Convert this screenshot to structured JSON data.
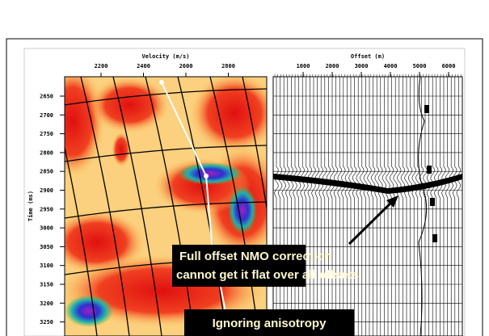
{
  "figure": {
    "velocity_panel": {
      "axis_label": "Velocity (m/s)",
      "ticks": [
        "2200",
        "2400",
        "2600",
        "2800"
      ]
    },
    "offset_panel": {
      "axis_label": "Offset (m)",
      "ticks": [
        "1000",
        "2000",
        "3000",
        "4000",
        "5000",
        "6000"
      ]
    },
    "time_axis": {
      "axis_label": "Time (ms)",
      "ticks": [
        "2650",
        "2700",
        "2750",
        "2800",
        "2850",
        "2900",
        "2950",
        "3000",
        "3050",
        "3100",
        "3150",
        "3200",
        "3250"
      ]
    },
    "annotations": [
      {
        "lines": [
          "Full offset NMO correction",
          "cannot get it flat over all offsets"
        ]
      },
      {
        "lines": [
          "Ignoring anisotropy"
        ]
      }
    ]
  }
}
